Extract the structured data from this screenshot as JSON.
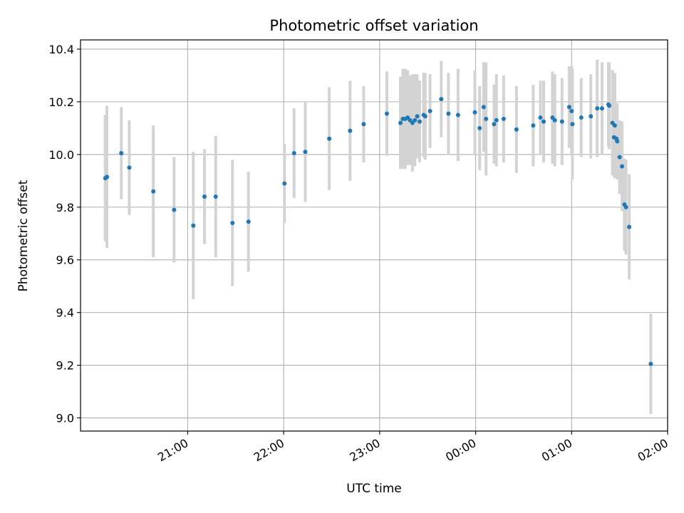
{
  "chart_data": {
    "type": "scatter",
    "title": "Photometric offset variation",
    "xlabel": "UTC time",
    "ylabel": "Photometric offset",
    "x_unit": "minutes relative to 00:00 UTC",
    "xlim": [
      -247,
      120
    ],
    "ylim": [
      8.95,
      10.435
    ],
    "x_ticks": [
      -180,
      -120,
      -60,
      0,
      60,
      120
    ],
    "x_tick_labels": [
      "21:00",
      "22:00",
      "23:00",
      "00:00",
      "01:00",
      "02:00"
    ],
    "y_ticks": [
      9.0,
      9.2,
      9.4,
      9.6,
      9.8,
      10.0,
      10.2,
      10.4
    ],
    "y_tick_labels": [
      "9.0",
      "9.2",
      "9.4",
      "9.6",
      "9.8",
      "10.0",
      "10.2",
      "10.4"
    ],
    "grid": true,
    "marker_color": "#1f77b4",
    "errorbar_color": "#d3d3d3",
    "points": [
      {
        "x": -231.5,
        "y": 9.91,
        "err": 0.24
      },
      {
        "x": -230.5,
        "y": 9.915,
        "err": 0.27
      },
      {
        "x": -221.5,
        "y": 10.005,
        "err": 0.175
      },
      {
        "x": -216.5,
        "y": 9.95,
        "err": 0.18
      },
      {
        "x": -201.5,
        "y": 9.86,
        "err": 0.25
      },
      {
        "x": -188.5,
        "y": 9.79,
        "err": 0.2
      },
      {
        "x": -176.5,
        "y": 9.73,
        "err": 0.28
      },
      {
        "x": -169.5,
        "y": 9.84,
        "err": 0.18
      },
      {
        "x": -162.5,
        "y": 9.84,
        "err": 0.23
      },
      {
        "x": -152.0,
        "y": 9.74,
        "err": 0.24
      },
      {
        "x": -142.0,
        "y": 9.745,
        "err": 0.19
      },
      {
        "x": -119.5,
        "y": 9.89,
        "err": 0.15
      },
      {
        "x": -113.5,
        "y": 10.005,
        "err": 0.17
      },
      {
        "x": -106.5,
        "y": 10.01,
        "err": 0.19
      },
      {
        "x": -91.5,
        "y": 10.06,
        "err": 0.195
      },
      {
        "x": -78.5,
        "y": 10.09,
        "err": 0.19
      },
      {
        "x": -70.0,
        "y": 10.115,
        "err": 0.145
      },
      {
        "x": -55.5,
        "y": 10.155,
        "err": 0.16
      },
      {
        "x": -47.0,
        "y": 10.12,
        "err": 0.175
      },
      {
        "x": -45.5,
        "y": 10.135,
        "err": 0.19
      },
      {
        "x": -44.0,
        "y": 10.135,
        "err": 0.19
      },
      {
        "x": -42.5,
        "y": 10.14,
        "err": 0.18
      },
      {
        "x": -41.0,
        "y": 10.13,
        "err": 0.17
      },
      {
        "x": -39.5,
        "y": 10.12,
        "err": 0.185
      },
      {
        "x": -38.0,
        "y": 10.13,
        "err": 0.175
      },
      {
        "x": -36.5,
        "y": 10.145,
        "err": 0.16
      },
      {
        "x": -35.0,
        "y": 10.125,
        "err": 0.155
      },
      {
        "x": -32.5,
        "y": 10.15,
        "err": 0.16
      },
      {
        "x": -31.5,
        "y": 10.145,
        "err": 0.165
      },
      {
        "x": -28.5,
        "y": 10.165,
        "err": 0.14
      },
      {
        "x": -21.5,
        "y": 10.21,
        "err": 0.145
      },
      {
        "x": -17.0,
        "y": 10.155,
        "err": 0.155
      },
      {
        "x": -11.0,
        "y": 10.15,
        "err": 0.175
      },
      {
        "x": -0.5,
        "y": 10.16,
        "err": 0.16
      },
      {
        "x": 2.5,
        "y": 10.1,
        "err": 0.16
      },
      {
        "x": 5.0,
        "y": 10.18,
        "err": 0.17
      },
      {
        "x": 6.5,
        "y": 10.135,
        "err": 0.215
      },
      {
        "x": 11.5,
        "y": 10.115,
        "err": 0.15
      },
      {
        "x": 13.0,
        "y": 10.13,
        "err": 0.175
      },
      {
        "x": 17.5,
        "y": 10.135,
        "err": 0.165
      },
      {
        "x": 25.5,
        "y": 10.095,
        "err": 0.165
      },
      {
        "x": 36.0,
        "y": 10.11,
        "err": 0.155
      },
      {
        "x": 40.5,
        "y": 10.14,
        "err": 0.14
      },
      {
        "x": 42.5,
        "y": 10.125,
        "err": 0.155
      },
      {
        "x": 48.0,
        "y": 10.14,
        "err": 0.175
      },
      {
        "x": 49.5,
        "y": 10.13,
        "err": 0.175
      },
      {
        "x": 54.0,
        "y": 10.125,
        "err": 0.165
      },
      {
        "x": 58.5,
        "y": 10.18,
        "err": 0.155
      },
      {
        "x": 60.0,
        "y": 10.165,
        "err": 0.17
      },
      {
        "x": 60.5,
        "y": 10.115,
        "err": 0.21
      },
      {
        "x": 66.0,
        "y": 10.14,
        "err": 0.15
      },
      {
        "x": 72.0,
        "y": 10.145,
        "err": 0.16
      },
      {
        "x": 76.0,
        "y": 10.175,
        "err": 0.185
      },
      {
        "x": 79.0,
        "y": 10.175,
        "err": 0.175
      },
      {
        "x": 83.0,
        "y": 10.19,
        "err": 0.16
      },
      {
        "x": 83.5,
        "y": 10.185,
        "err": 0.165
      },
      {
        "x": 85.5,
        "y": 10.12,
        "err": 0.2
      },
      {
        "x": 86.5,
        "y": 10.065,
        "err": 0.15
      },
      {
        "x": 87.0,
        "y": 10.11,
        "err": 0.2
      },
      {
        "x": 88.0,
        "y": 10.06,
        "err": 0.12
      },
      {
        "x": 88.5,
        "y": 10.05,
        "err": 0.145
      },
      {
        "x": 90.0,
        "y": 9.99,
        "err": 0.14
      },
      {
        "x": 91.5,
        "y": 9.955,
        "err": 0.17
      },
      {
        "x": 93.0,
        "y": 9.81,
        "err": 0.175
      },
      {
        "x": 94.0,
        "y": 9.8,
        "err": 0.18
      },
      {
        "x": 96.0,
        "y": 9.725,
        "err": 0.2
      },
      {
        "x": 109.5,
        "y": 9.205,
        "err": 0.19
      }
    ]
  }
}
